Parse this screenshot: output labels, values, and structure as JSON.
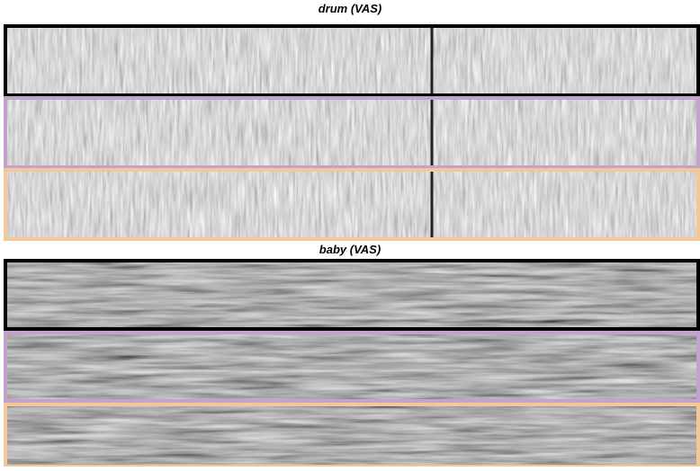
{
  "figure": {
    "sections": [
      {
        "title": "drum (VAS)"
      },
      {
        "title": "baby (VAS)"
      }
    ]
  }
}
